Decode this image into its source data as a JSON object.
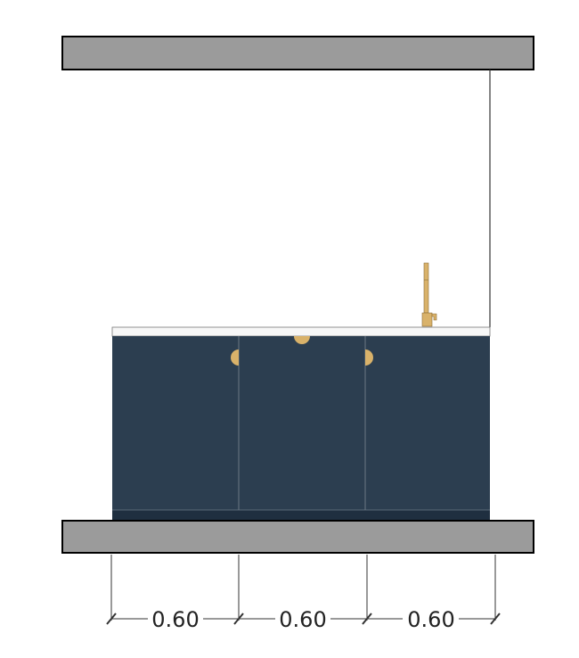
{
  "drawing": {
    "type": "kitchen-cabinet-elevation",
    "colors": {
      "slab": "#9b9b9b",
      "slab_outline": "#000000",
      "cabinet_front": "#2c3e50",
      "cabinet_plinth": "#1f2f40",
      "door_seam": "#6b7885",
      "countertop": "#f7f7f7",
      "hardware_brass": "#d9b26a",
      "line": "#333333"
    },
    "cabinets": [
      {
        "name": "cabinet-left",
        "width_m": 0.6,
        "handle": "right-edge"
      },
      {
        "name": "cabinet-middle",
        "width_m": 0.6,
        "handle": "top-center"
      },
      {
        "name": "cabinet-right",
        "width_m": 0.6,
        "handle": "left-edge"
      }
    ],
    "fixtures": [
      "faucet-icon"
    ],
    "dimensions": [
      {
        "label": "0.60"
      },
      {
        "label": "0.60"
      },
      {
        "label": "0.60"
      }
    ]
  }
}
